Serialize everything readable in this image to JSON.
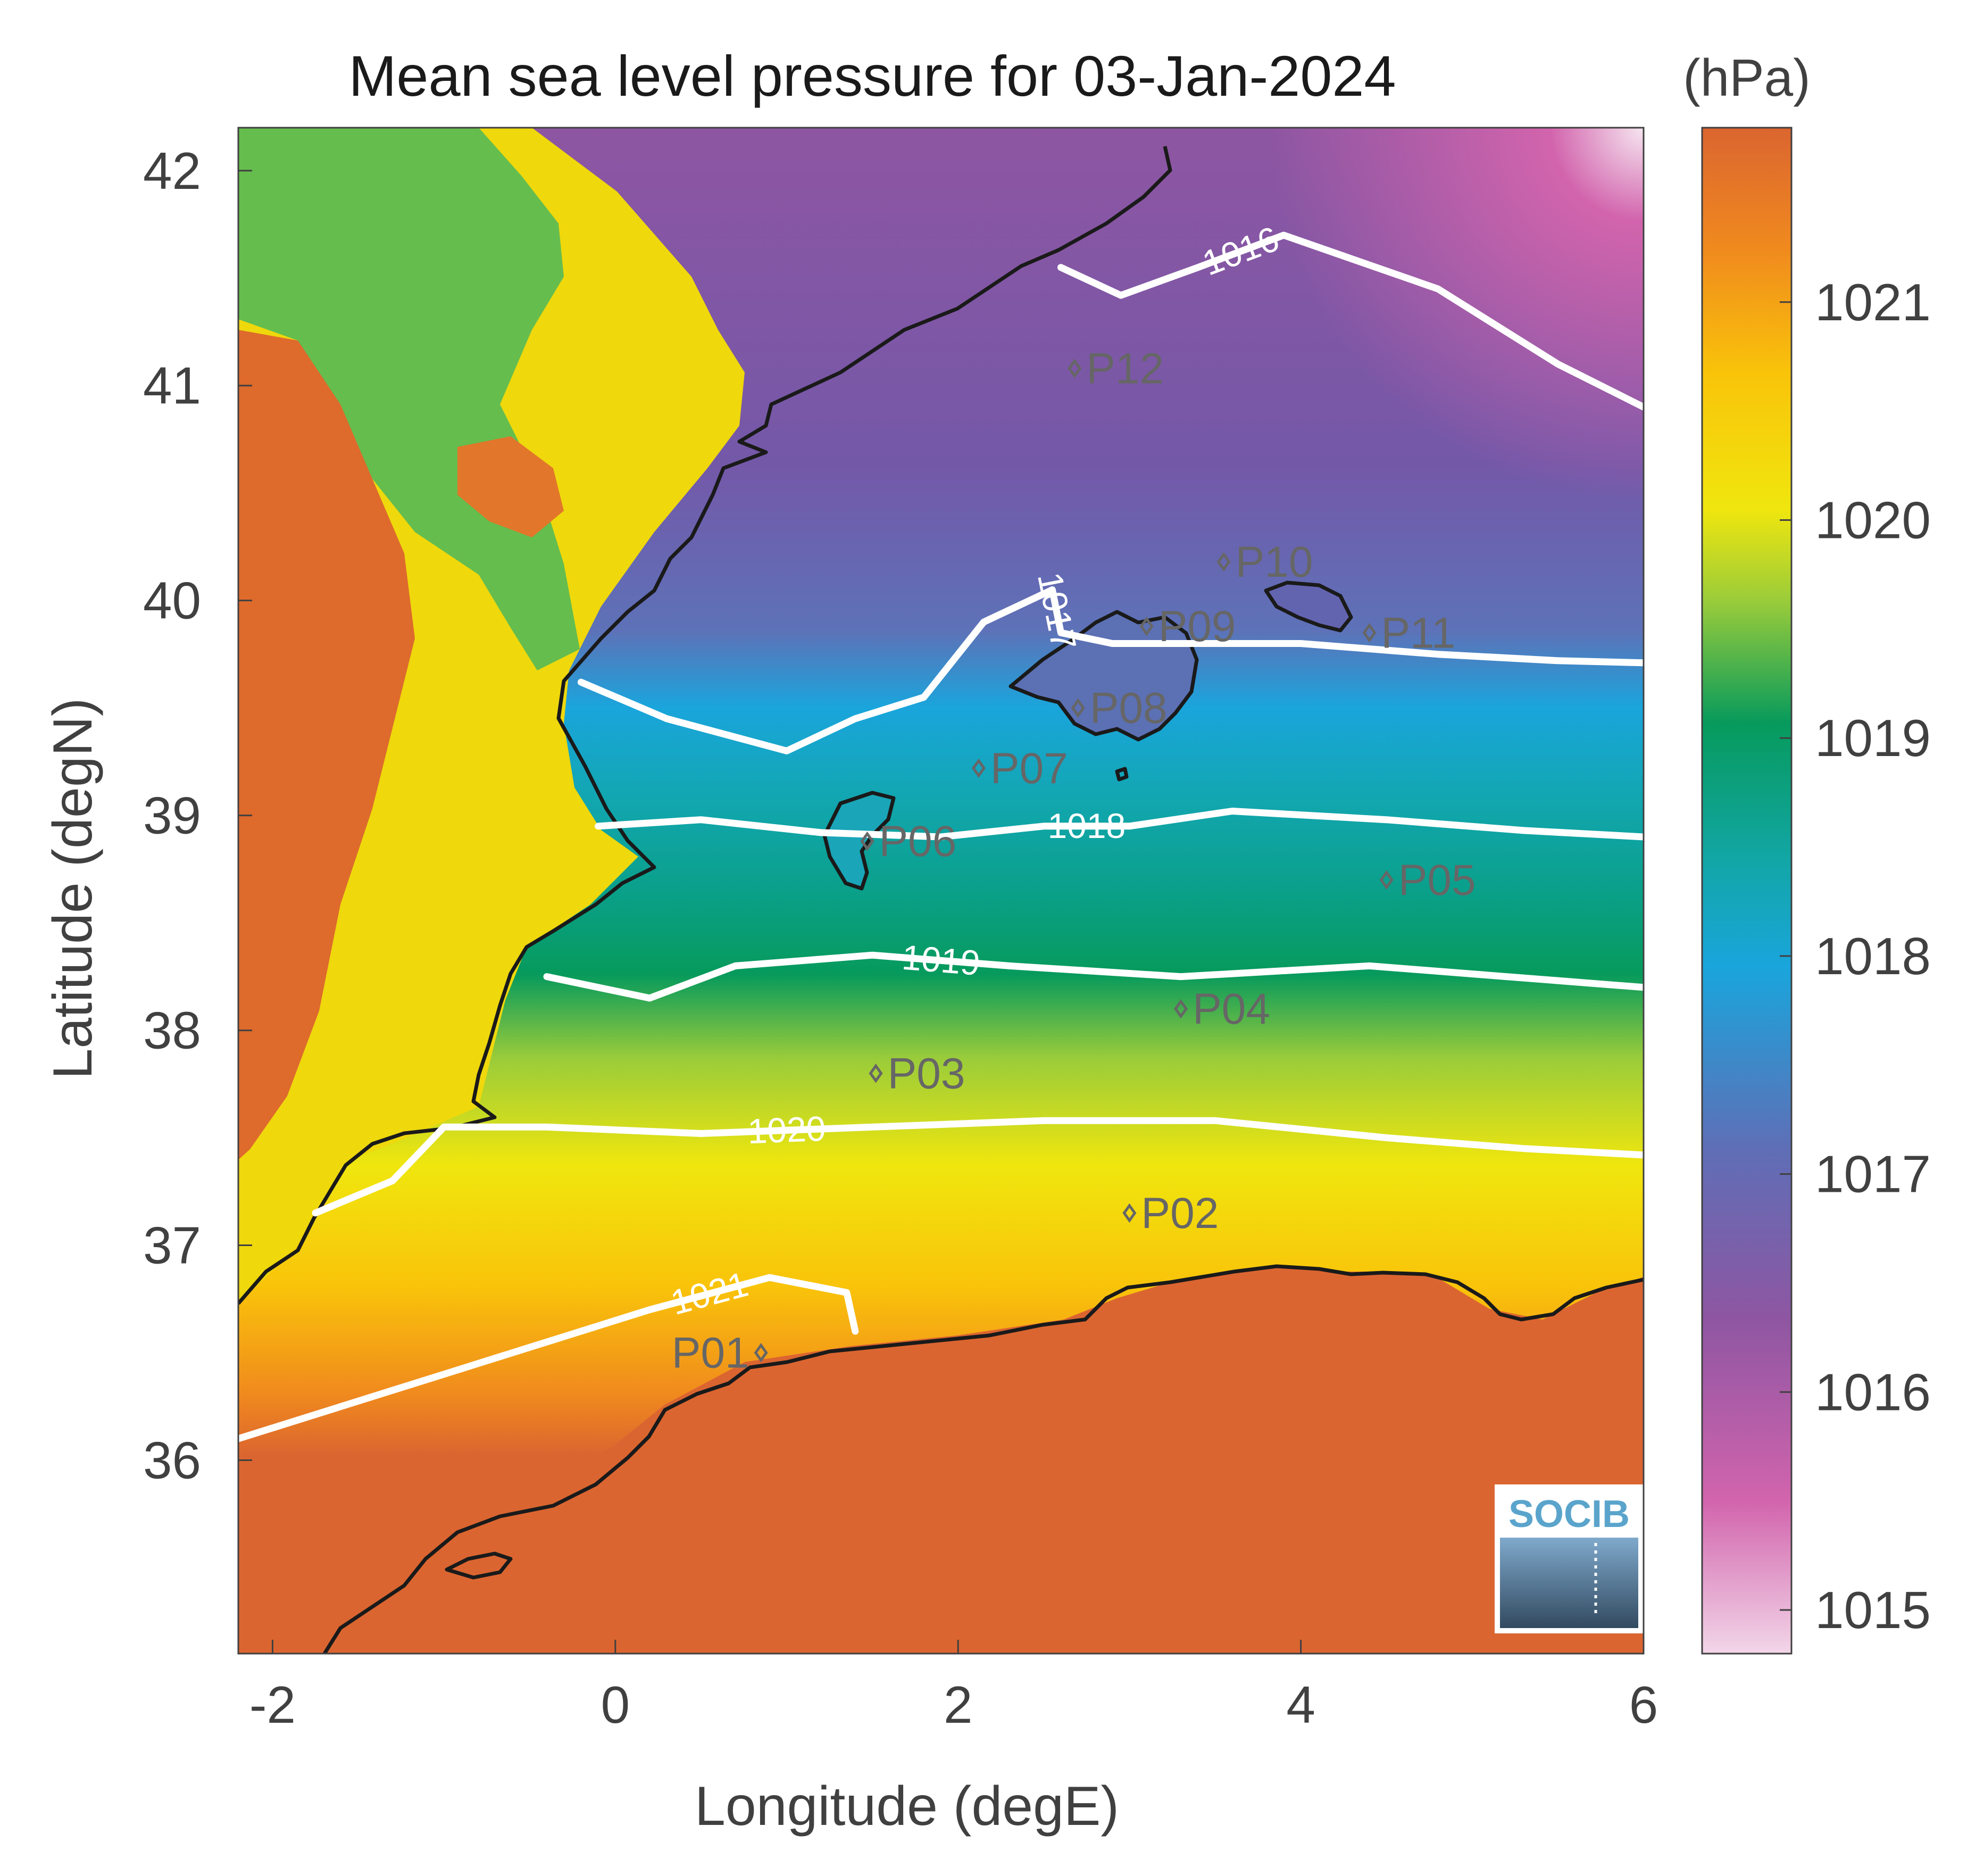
{
  "chart_data": {
    "type": "heatmap",
    "title": "Mean sea level pressure for 03-Jan-2024",
    "xlabel": "Longitude (degE)",
    "ylabel": "Latitude (degN)",
    "xlim": [
      -2.2,
      6.0
    ],
    "ylim": [
      35.1,
      42.2
    ],
    "xticks": [
      -2,
      0,
      2,
      4,
      6
    ],
    "yticks": [
      36,
      37,
      38,
      39,
      40,
      41,
      42
    ],
    "colorbar": {
      "unit": "(hPa)",
      "range": [
        1014.8,
        1021.8
      ],
      "ticks": [
        1015,
        1016,
        1017,
        1018,
        1019,
        1020,
        1021
      ],
      "colors": [
        "#f2d6e8",
        "#d264ad",
        "#8e56a2",
        "#5f6eb6",
        "#1aa5dc",
        "#12a6a6",
        "#079a5c",
        "#9acc3a",
        "#f0e60e",
        "#f9c30a",
        "#f08a1e",
        "#db6530"
      ]
    },
    "contours": [
      {
        "label": "1016",
        "lon_lat": [
          [
            2.6,
            41.55
          ],
          [
            2.95,
            41.42
          ],
          [
            3.4,
            41.55
          ],
          [
            3.9,
            41.7
          ],
          [
            4.8,
            41.45
          ],
          [
            5.5,
            41.1
          ],
          [
            6.0,
            40.9
          ]
        ]
      },
      {
        "label": "1017",
        "lon_lat": [
          [
            -0.2,
            39.62
          ],
          [
            0.3,
            39.45
          ],
          [
            1.0,
            39.3
          ],
          [
            1.4,
            39.45
          ],
          [
            1.8,
            39.55
          ],
          [
            2.15,
            39.9
          ],
          [
            2.55,
            40.05
          ],
          [
            2.6,
            39.85
          ],
          [
            2.9,
            39.8
          ],
          [
            3.5,
            39.8
          ],
          [
            4.0,
            39.8
          ],
          [
            4.8,
            39.75
          ],
          [
            5.5,
            39.72
          ],
          [
            6.0,
            39.71
          ]
        ]
      },
      {
        "label": "1018",
        "lon_lat": [
          [
            -0.1,
            38.95
          ],
          [
            0.5,
            38.98
          ],
          [
            1.2,
            38.92
          ],
          [
            1.9,
            38.9
          ],
          [
            2.5,
            38.95
          ],
          [
            3.0,
            38.95
          ],
          [
            3.6,
            39.02
          ],
          [
            4.5,
            38.98
          ],
          [
            5.3,
            38.93
          ],
          [
            6.0,
            38.9
          ]
        ]
      },
      {
        "label": "1019",
        "lon_lat": [
          [
            -0.4,
            38.25
          ],
          [
            0.2,
            38.15
          ],
          [
            0.7,
            38.3
          ],
          [
            1.5,
            38.35
          ],
          [
            2.3,
            38.3
          ],
          [
            3.3,
            38.25
          ],
          [
            4.4,
            38.3
          ],
          [
            5.2,
            38.25
          ],
          [
            6.0,
            38.2
          ]
        ]
      },
      {
        "label": "1020",
        "lon_lat": [
          [
            -1.75,
            37.15
          ],
          [
            -1.3,
            37.3
          ],
          [
            -1.0,
            37.55
          ],
          [
            -0.4,
            37.55
          ],
          [
            0.5,
            37.52
          ],
          [
            1.5,
            37.55
          ],
          [
            2.5,
            37.58
          ],
          [
            3.5,
            37.58
          ],
          [
            4.5,
            37.5
          ],
          [
            5.3,
            37.45
          ],
          [
            6.0,
            37.42
          ]
        ]
      },
      {
        "label": "1021",
        "lon_lat": [
          [
            -2.2,
            36.1
          ],
          [
            -1.0,
            36.4
          ],
          [
            0.2,
            36.7
          ],
          [
            0.9,
            36.85
          ],
          [
            1.35,
            36.78
          ],
          [
            1.4,
            36.6
          ]
        ]
      }
    ],
    "points": [
      {
        "id": "P01",
        "lon": 0.85,
        "lat": 36.5
      },
      {
        "id": "P02",
        "lon": 3.0,
        "lat": 37.15
      },
      {
        "id": "P03",
        "lon": 1.52,
        "lat": 37.8
      },
      {
        "id": "P04",
        "lon": 3.3,
        "lat": 38.1
      },
      {
        "id": "P05",
        "lon": 4.5,
        "lat": 38.7
      },
      {
        "id": "P06",
        "lon": 1.47,
        "lat": 38.88
      },
      {
        "id": "P07",
        "lon": 2.12,
        "lat": 39.22
      },
      {
        "id": "P08",
        "lon": 2.7,
        "lat": 39.5
      },
      {
        "id": "P09",
        "lon": 3.1,
        "lat": 39.88
      },
      {
        "id": "P10",
        "lon": 3.55,
        "lat": 40.18
      },
      {
        "id": "P11",
        "lon": 4.4,
        "lat": 39.85
      },
      {
        "id": "P12",
        "lon": 2.68,
        "lat": 41.08
      }
    ],
    "logo": {
      "text": "SOCIB",
      "placement": "bottom-right"
    }
  }
}
